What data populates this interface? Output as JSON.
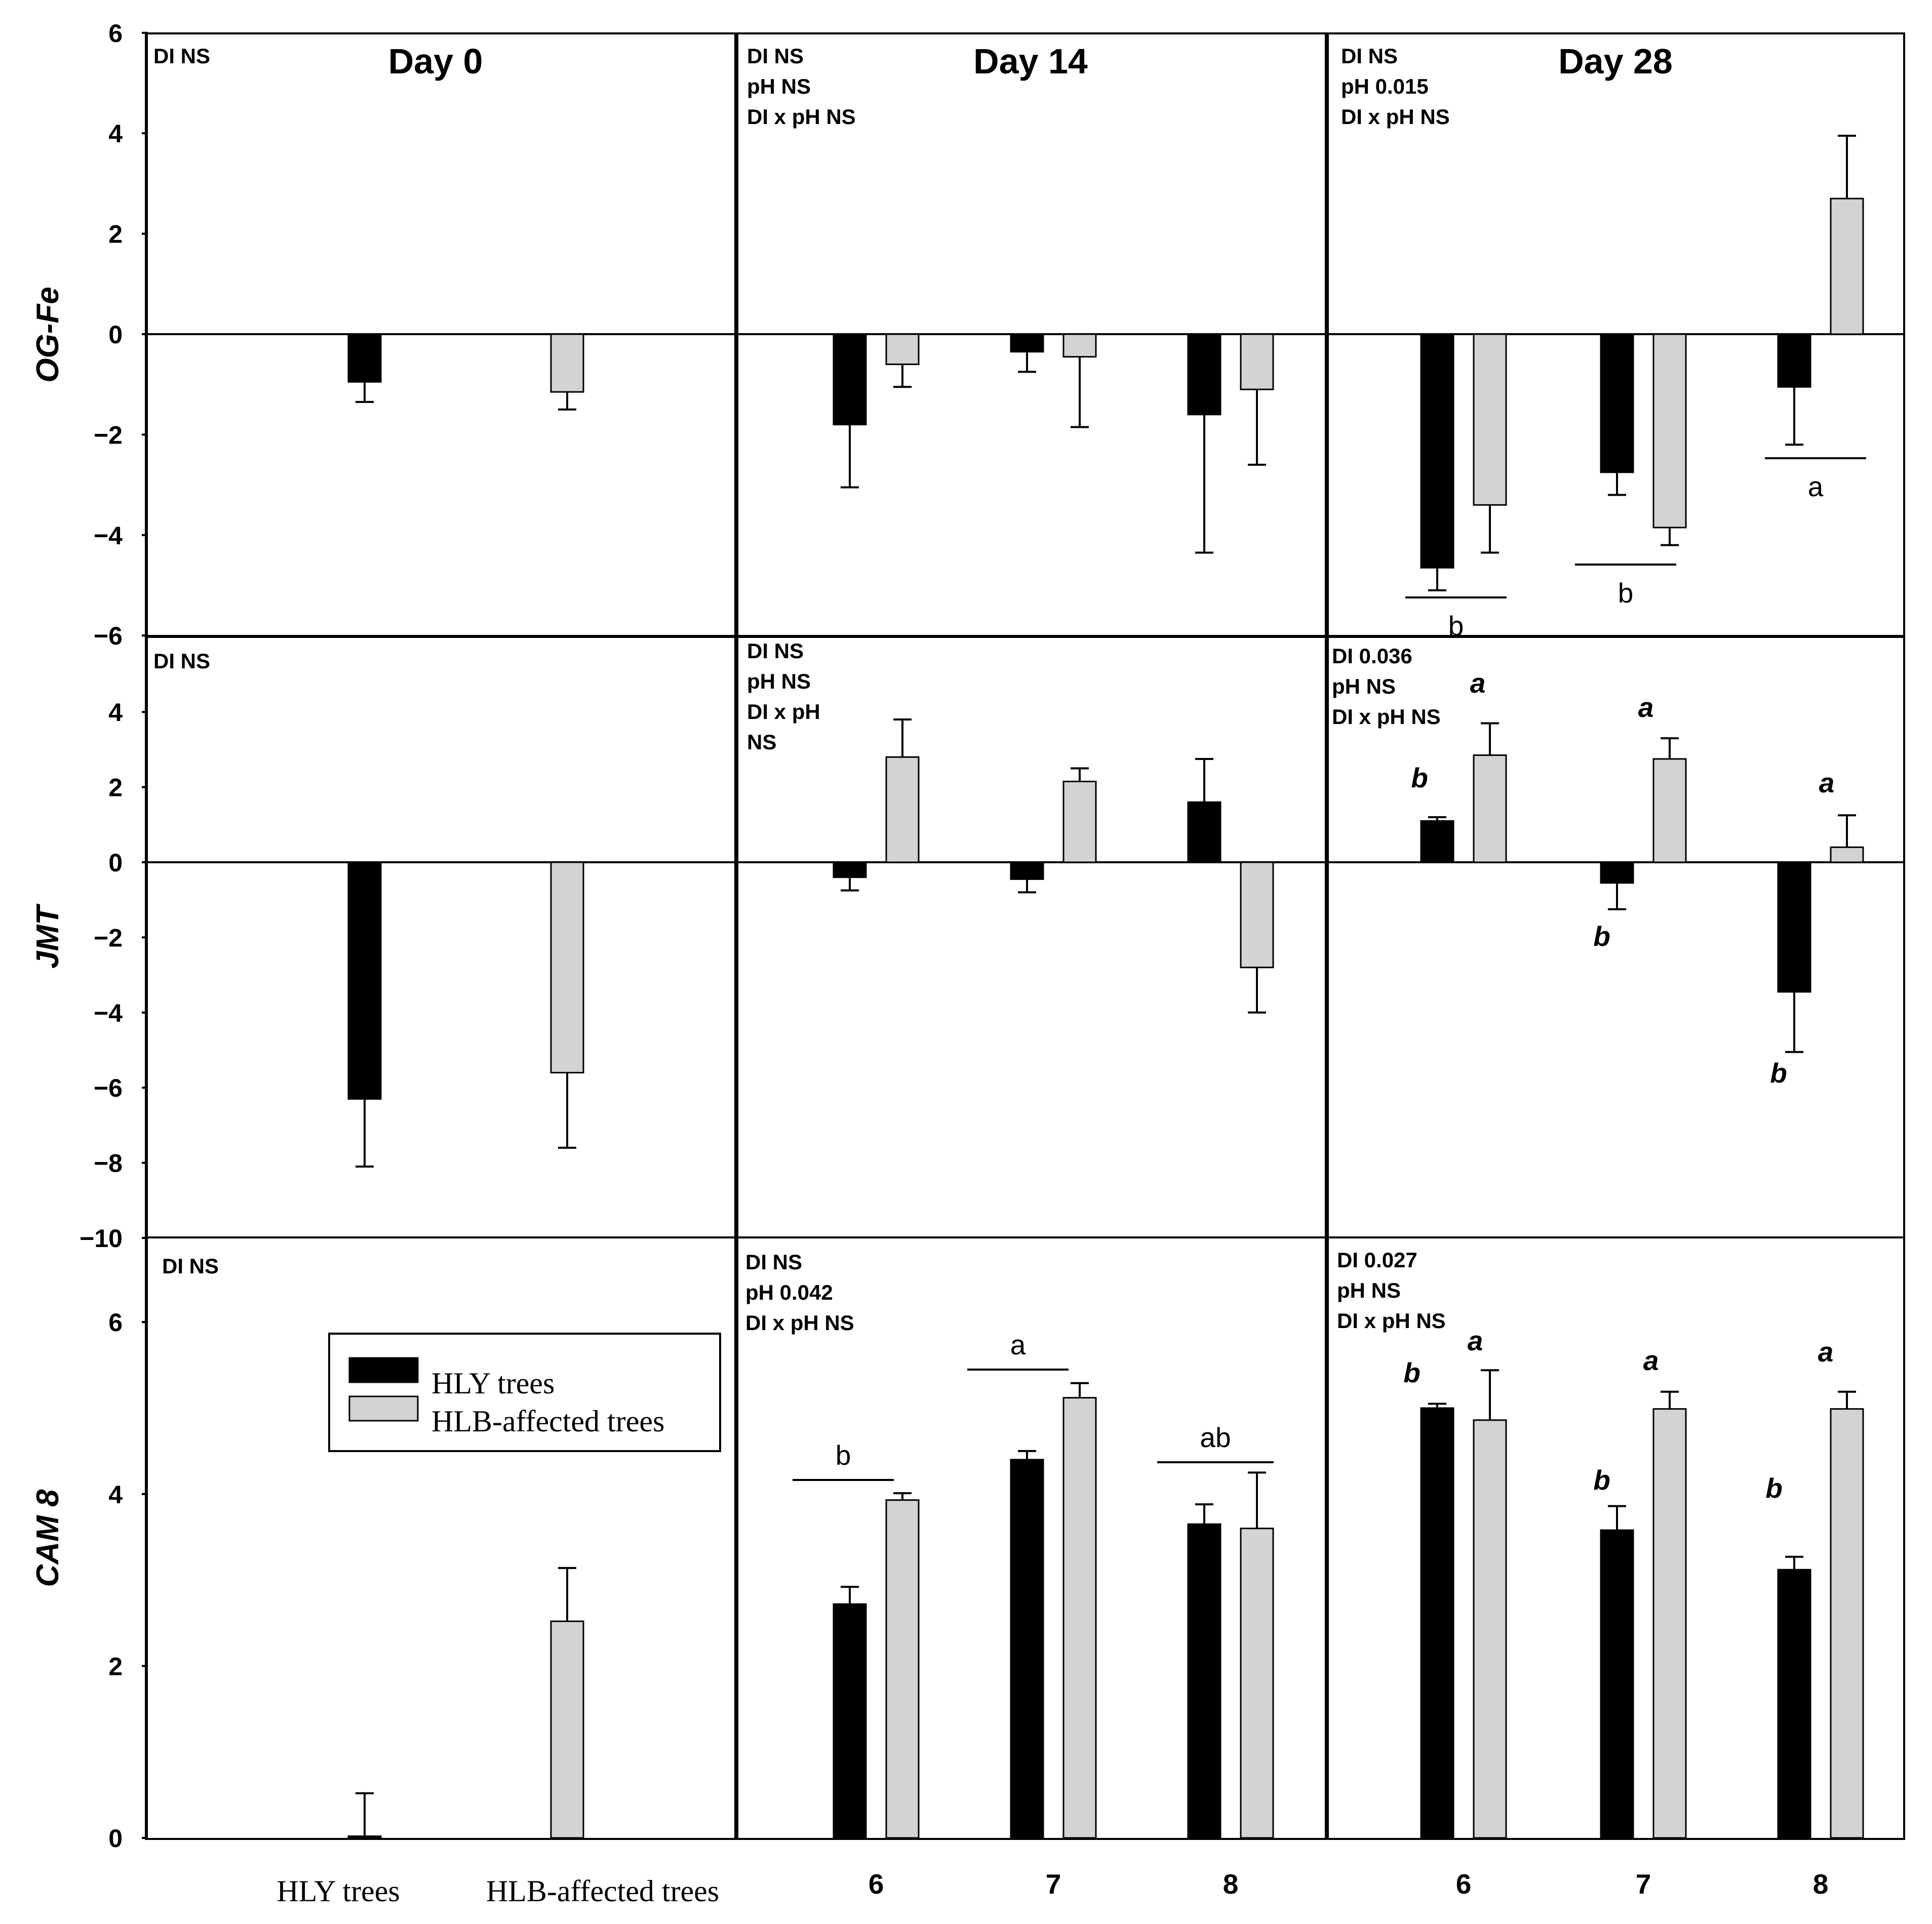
{
  "colors": {
    "hly": "#000000",
    "hlb": "#d3d3d3",
    "axis": "#000000",
    "background": "#ffffff"
  },
  "legend": {
    "entries": [
      "HLY trees",
      "HLB-affected trees"
    ],
    "placement": "bottom-left panel, center"
  },
  "columns": [
    {
      "title": "Day 0",
      "x_labels": [
        "HLY trees",
        "HLB-affected trees"
      ]
    },
    {
      "title": "Day 14",
      "x_labels": [
        "6",
        "7",
        "8"
      ]
    },
    {
      "title": "Day 28",
      "x_labels": [
        "6",
        "7",
        "8"
      ]
    }
  ],
  "rows": [
    {
      "ylabel": "OG-Fe",
      "ylim": [
        -6,
        6
      ],
      "ticks": [
        "6",
        "4",
        "2",
        "0",
        "−2",
        "−4",
        "−6"
      ]
    },
    {
      "ylabel": "JMT",
      "ylim": [
        -10,
        6
      ],
      "ticks": [
        "4",
        "2",
        "0",
        "−2",
        "−4",
        "−6",
        "−8",
        "−10"
      ]
    },
    {
      "ylabel": "CAM 8",
      "ylim": [
        0,
        7
      ],
      "ticks": [
        "6",
        "4",
        "2",
        "0"
      ]
    }
  ],
  "chart_data": [
    {
      "type": "bar",
      "title": "Day 0",
      "ylabel": "OG-Fe",
      "ylim": [
        -6,
        6
      ],
      "categories": [
        "HLY trees",
        "HLB-affected trees"
      ],
      "series": [
        {
          "name": "HLY trees",
          "values": [
            -0.95,
            null
          ],
          "errors": [
            0.4,
            null
          ]
        },
        {
          "name": "HLB-affected trees",
          "values": [
            null,
            -1.15
          ],
          "errors": [
            null,
            0.35
          ]
        }
      ],
      "stats": [
        "DI  NS"
      ],
      "letters": []
    },
    {
      "type": "bar",
      "title": "Day 14",
      "ylabel": "OG-Fe",
      "ylim": [
        -6,
        6
      ],
      "categories": [
        "6",
        "7",
        "8"
      ],
      "series": [
        {
          "name": "HLY trees",
          "values": [
            -1.8,
            -0.35,
            -1.6
          ],
          "errors": [
            1.25,
            0.4,
            2.75
          ]
        },
        {
          "name": "HLB-affected trees",
          "values": [
            -0.6,
            -0.45,
            -1.1
          ],
          "errors": [
            0.45,
            1.4,
            1.5
          ]
        }
      ],
      "stats": [
        "DI  NS",
        "pH NS",
        "DI x pH NS"
      ],
      "letters": []
    },
    {
      "type": "bar",
      "title": "Day 28",
      "ylabel": "OG-Fe",
      "ylim": [
        -6,
        6
      ],
      "categories": [
        "6",
        "7",
        "8"
      ],
      "series": [
        {
          "name": "HLY trees",
          "values": [
            -4.65,
            -2.75,
            -1.05
          ],
          "errors": [
            0.45,
            0.45,
            1.15
          ]
        },
        {
          "name": "HLB-affected trees",
          "values": [
            -3.4,
            -3.85,
            2.7
          ],
          "errors": [
            0.95,
            0.35,
            1.25
          ]
        }
      ],
      "stats": [
        "DI  NS",
        "pH 0.015",
        "DI x pH NS"
      ],
      "letters": [
        "b",
        "b",
        "a"
      ]
    },
    {
      "type": "bar",
      "title": "",
      "ylabel": "JMT",
      "ylim": [
        -10,
        6
      ],
      "categories": [
        "HLY trees",
        "HLB-affected trees"
      ],
      "series": [
        {
          "name": "HLY trees",
          "values": [
            -6.3,
            null
          ],
          "errors": [
            1.8,
            null
          ]
        },
        {
          "name": "HLB-affected trees",
          "values": [
            null,
            -5.6
          ],
          "errors": [
            null,
            2.0
          ]
        }
      ],
      "stats": [
        "DI  NS"
      ],
      "letters": []
    },
    {
      "type": "bar",
      "title": "",
      "ylabel": "JMT",
      "ylim": [
        -10,
        6
      ],
      "categories": [
        "6",
        "7",
        "8"
      ],
      "series": [
        {
          "name": "HLY trees",
          "values": [
            -0.4,
            -0.45,
            1.6
          ],
          "errors": [
            0.35,
            0.35,
            1.15
          ]
        },
        {
          "name": "HLB-affected trees",
          "values": [
            2.8,
            2.15,
            -2.8
          ],
          "errors": [
            1.0,
            0.35,
            1.2
          ]
        }
      ],
      "stats": [
        "DI  NS",
        "pH NS",
        "DI x pH",
        "NS"
      ],
      "letters": []
    },
    {
      "type": "bar",
      "title": "",
      "ylabel": "JMT",
      "ylim": [
        -10,
        6
      ],
      "categories": [
        "6",
        "7",
        "8"
      ],
      "series": [
        {
          "name": "HLY trees",
          "values": [
            1.1,
            -0.55,
            -3.45
          ],
          "errors": [
            0.1,
            0.7,
            1.6
          ]
        },
        {
          "name": "HLB-affected trees",
          "values": [
            2.85,
            2.75,
            0.4
          ],
          "errors": [
            0.85,
            0.55,
            0.85
          ]
        }
      ],
      "stats": [
        "DI  0.036",
        "pH NS",
        "DI x pH NS"
      ],
      "letters": [
        "b",
        "a",
        "b",
        "a",
        "b",
        "a"
      ]
    },
    {
      "type": "bar",
      "title": "",
      "ylabel": "CAM 8",
      "ylim": [
        0,
        7
      ],
      "categories": [
        "HLY trees",
        "HLB-affected trees"
      ],
      "series": [
        {
          "name": "HLY trees",
          "values": [
            0.02,
            null
          ],
          "errors": [
            0.5,
            null
          ]
        },
        {
          "name": "HLB-affected trees",
          "values": [
            null,
            2.52
          ],
          "errors": [
            null,
            0.62
          ]
        }
      ],
      "stats": [
        "DI  NS"
      ],
      "letters": []
    },
    {
      "type": "bar",
      "title": "",
      "ylabel": "CAM 8",
      "ylim": [
        0,
        7
      ],
      "categories": [
        "6",
        "7",
        "8"
      ],
      "series": [
        {
          "name": "HLY trees",
          "values": [
            2.72,
            4.4,
            3.65
          ],
          "errors": [
            0.2,
            0.1,
            0.23
          ]
        },
        {
          "name": "HLB-affected trees",
          "values": [
            3.93,
            5.12,
            3.6
          ],
          "errors": [
            0.08,
            0.17,
            0.65
          ]
        }
      ],
      "stats": [
        "DI  NS",
        "pH 0.042",
        "DI x pH NS"
      ],
      "letters": [
        "b",
        "a",
        "ab"
      ]
    },
    {
      "type": "bar",
      "title": "",
      "ylabel": "CAM 8",
      "ylim": [
        0,
        7
      ],
      "categories": [
        "6",
        "7",
        "8"
      ],
      "series": [
        {
          "name": "HLY trees",
          "values": [
            5.0,
            3.58,
            3.12
          ],
          "errors": [
            0.05,
            0.28,
            0.15
          ]
        },
        {
          "name": "HLB-affected trees",
          "values": [
            4.86,
            4.99,
            4.99
          ],
          "errors": [
            0.58,
            0.2,
            0.2
          ]
        }
      ],
      "stats": [
        "DI  0.027",
        "pH NS",
        "DI x pH NS"
      ],
      "letters": [
        "b",
        "a",
        "b",
        "a",
        "b",
        "a"
      ]
    }
  ]
}
